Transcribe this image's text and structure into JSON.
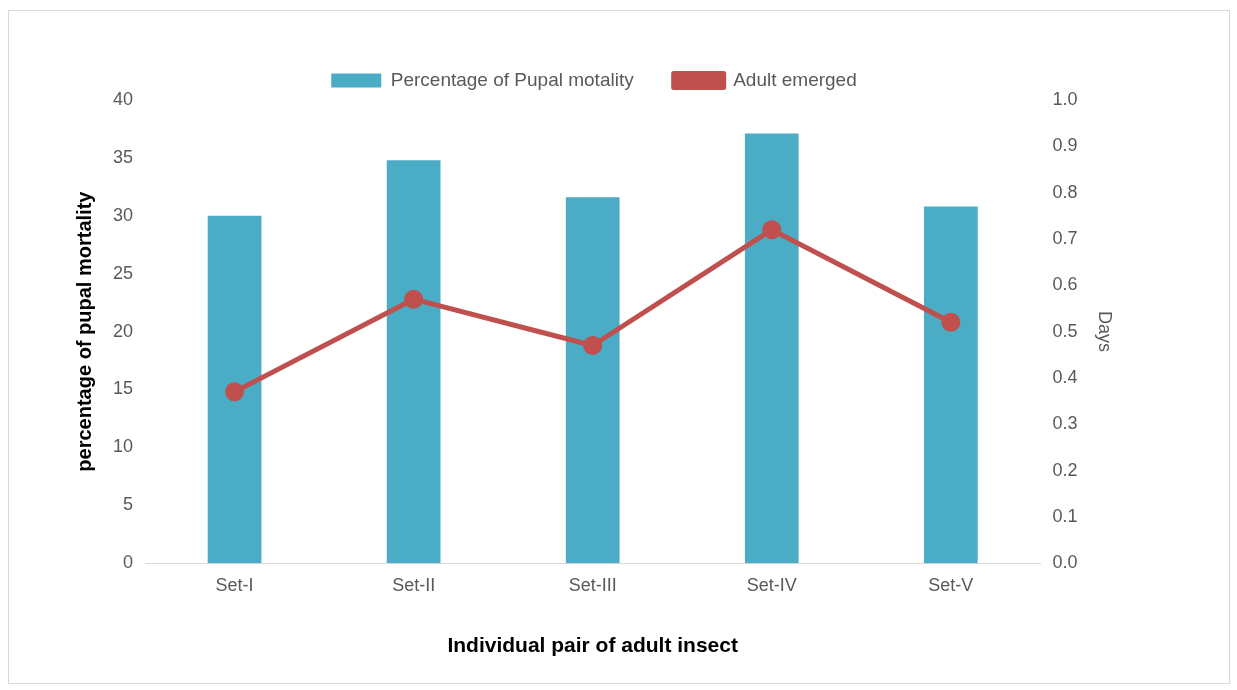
{
  "chart_data": {
    "type": "bar",
    "categories": [
      "Set-I",
      "Set-II",
      "Set-III",
      "Set-IV",
      "Set-V"
    ],
    "series": [
      {
        "name": "Percentage of Pupal motality",
        "color": "#4bacc6",
        "values": [
          30,
          34.8,
          31.6,
          37.1,
          30.8
        ]
      },
      {
        "name": "Adult emerged",
        "type": "line",
        "axis": "y2",
        "color": "#c0504d",
        "values": [
          0.37,
          0.57,
          0.47,
          0.72,
          0.52
        ]
      }
    ],
    "xlabel": "Individual pair of adult insect",
    "ylabel": "percentage of pupal mortality",
    "y2label": "Days",
    "ylim": [
      0,
      40
    ],
    "yticks": [
      0,
      5,
      10,
      15,
      20,
      25,
      30,
      35,
      40
    ],
    "y2lim": [
      0,
      1
    ],
    "y2ticks": [
      {
        "value": 0,
        "label": "0.0"
      },
      {
        "value": 0.1,
        "label": "0.1"
      },
      {
        "value": 0.2,
        "label": "0.2"
      },
      {
        "value": 0.3,
        "label": "0.3"
      },
      {
        "value": 0.4,
        "label": "0.4"
      },
      {
        "value": 0.5,
        "label": "0.5"
      },
      {
        "value": 0.6,
        "label": "0.6"
      },
      {
        "value": 0.7,
        "label": "0.7"
      },
      {
        "value": 0.8,
        "label": "0.8"
      },
      {
        "value": 0.9,
        "label": "0.9"
      },
      {
        "value": 1,
        "label": "1.0"
      }
    ],
    "legend": "top",
    "grid": false,
    "marker": "circle",
    "line_style": "solid"
  }
}
